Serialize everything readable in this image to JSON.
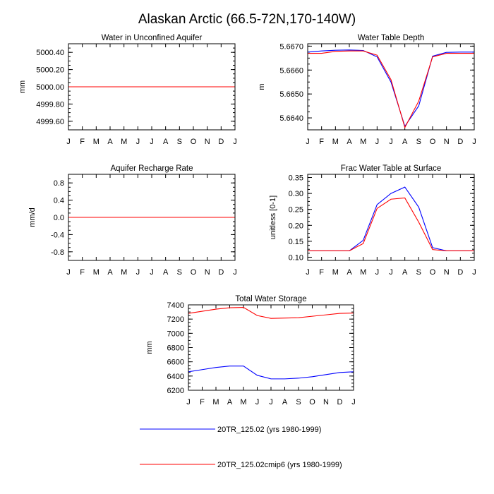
{
  "figure_title": "Alaskan Arctic (66.5-72N,170-140W)",
  "colors": {
    "run1": "#0000ff",
    "run2": "#ff0000"
  },
  "legend": [
    {
      "label": "20TR_125.02 (yrs 1980-1999)",
      "color": "#0000ff"
    },
    {
      "label": "20TR_125.02cmip6 (yrs 1980-1999)",
      "color": "#ff0000"
    }
  ],
  "chart_data": [
    {
      "type": "line",
      "title": "Water in Unconfined Aquifer",
      "ylabel": "mm",
      "categories": [
        "J",
        "F",
        "M",
        "A",
        "M",
        "J",
        "J",
        "A",
        "S",
        "O",
        "N",
        "D",
        "J"
      ],
      "ylim": [
        4999.5,
        5000.5
      ],
      "yticks": [
        4999.6,
        4999.8,
        5000.0,
        5000.2,
        5000.4
      ],
      "ytick_labels": [
        "4999.60",
        "4999.80",
        "5000.00",
        "5000.20",
        "5000.40"
      ],
      "series": [
        {
          "name": "20TR_125.02 (yrs 1980-1999)",
          "color": "#0000ff",
          "values": [
            5000,
            5000,
            5000,
            5000,
            5000,
            5000,
            5000,
            5000,
            5000,
            5000,
            5000,
            5000,
            5000
          ]
        },
        {
          "name": "20TR_125.02cmip6 (yrs 1980-1999)",
          "color": "#ff0000",
          "values": [
            5000,
            5000,
            5000,
            5000,
            5000,
            5000,
            5000,
            5000,
            5000,
            5000,
            5000,
            5000,
            5000
          ]
        }
      ]
    },
    {
      "type": "line",
      "title": "Water Table Depth",
      "ylabel": "m",
      "categories": [
        "J",
        "F",
        "M",
        "A",
        "M",
        "J",
        "J",
        "A",
        "S",
        "O",
        "N",
        "D",
        "J"
      ],
      "ylim": [
        5.6635,
        5.6671
      ],
      "yticks": [
        5.664,
        5.665,
        5.666,
        5.667
      ],
      "ytick_labels": [
        "5.6640",
        "5.6650",
        "5.6660",
        "5.6670"
      ],
      "series": [
        {
          "name": "20TR_125.02 (yrs 1980-1999)",
          "color": "#0000ff",
          "values": [
            5.66675,
            5.6668,
            5.66683,
            5.66684,
            5.66682,
            5.66655,
            5.6655,
            5.66365,
            5.6645,
            5.66658,
            5.66674,
            5.66675,
            5.66675
          ]
        },
        {
          "name": "20TR_125.02cmip6 (yrs 1980-1999)",
          "color": "#ff0000",
          "values": [
            5.6667,
            5.6667,
            5.66678,
            5.6668,
            5.6668,
            5.66662,
            5.6656,
            5.6636,
            5.6647,
            5.66655,
            5.6667,
            5.6667,
            5.6667
          ]
        }
      ]
    },
    {
      "type": "line",
      "title": "Aquifer Recharge Rate",
      "ylabel": "mm/d",
      "categories": [
        "J",
        "F",
        "M",
        "A",
        "M",
        "J",
        "J",
        "A",
        "S",
        "O",
        "N",
        "D",
        "J"
      ],
      "ylim": [
        -1.0,
        1.0
      ],
      "yticks": [
        -0.8,
        -0.4,
        0.0,
        0.4,
        0.8
      ],
      "ytick_labels": [
        "-0.8",
        "-0.4",
        "0.0",
        "0.4",
        "0.8"
      ],
      "series": [
        {
          "name": "20TR_125.02 (yrs 1980-1999)",
          "color": "#0000ff",
          "values": [
            0,
            0,
            0,
            0,
            0,
            0,
            0,
            0,
            0,
            0,
            0,
            0,
            0
          ]
        },
        {
          "name": "20TR_125.02cmip6 (yrs 1980-1999)",
          "color": "#ff0000",
          "values": [
            0,
            0,
            0,
            0,
            0,
            0,
            0,
            0,
            0,
            0,
            0,
            0,
            0
          ]
        }
      ]
    },
    {
      "type": "line",
      "title": "Frac Water Table at Surface",
      "ylabel": "unitless [0-1]",
      "categories": [
        "J",
        "F",
        "M",
        "A",
        "M",
        "J",
        "J",
        "A",
        "S",
        "O",
        "N",
        "D",
        "J"
      ],
      "ylim": [
        0.09,
        0.36
      ],
      "yticks": [
        0.1,
        0.15,
        0.2,
        0.25,
        0.3,
        0.35
      ],
      "ytick_labels": [
        "0.10",
        "0.15",
        "0.20",
        "0.25",
        "0.30",
        "0.35"
      ],
      "series": [
        {
          "name": "20TR_125.02 (yrs 1980-1999)",
          "color": "#0000ff",
          "values": [
            0.12,
            0.12,
            0.12,
            0.12,
            0.153,
            0.265,
            0.3,
            0.32,
            0.257,
            0.13,
            0.12,
            0.12,
            0.12
          ]
        },
        {
          "name": "20TR_125.02cmip6 (yrs 1980-1999)",
          "color": "#ff0000",
          "values": [
            0.12,
            0.12,
            0.12,
            0.12,
            0.143,
            0.253,
            0.282,
            0.286,
            0.21,
            0.124,
            0.12,
            0.12,
            0.12
          ]
        }
      ]
    },
    {
      "type": "line",
      "title": "Total Water Storage",
      "ylabel": "mm",
      "categories": [
        "J",
        "F",
        "M",
        "A",
        "M",
        "J",
        "J",
        "A",
        "S",
        "O",
        "N",
        "D",
        "J"
      ],
      "ylim": [
        6200,
        7400
      ],
      "yticks": [
        6200,
        6400,
        6600,
        6800,
        7000,
        7200,
        7400
      ],
      "ytick_labels": [
        "6200",
        "6400",
        "6600",
        "6800",
        "7000",
        "7200",
        "7400"
      ],
      "series": [
        {
          "name": "20TR_125.02 (yrs 1980-1999)",
          "color": "#0000ff",
          "values": [
            6460,
            6490,
            6520,
            6540,
            6540,
            6410,
            6360,
            6360,
            6370,
            6390,
            6420,
            6450,
            6460
          ]
        },
        {
          "name": "20TR_125.02cmip6 (yrs 1980-1999)",
          "color": "#ff0000",
          "values": [
            7280,
            7310,
            7340,
            7360,
            7365,
            7250,
            7210,
            7215,
            7220,
            7240,
            7260,
            7280,
            7285
          ]
        }
      ]
    }
  ]
}
